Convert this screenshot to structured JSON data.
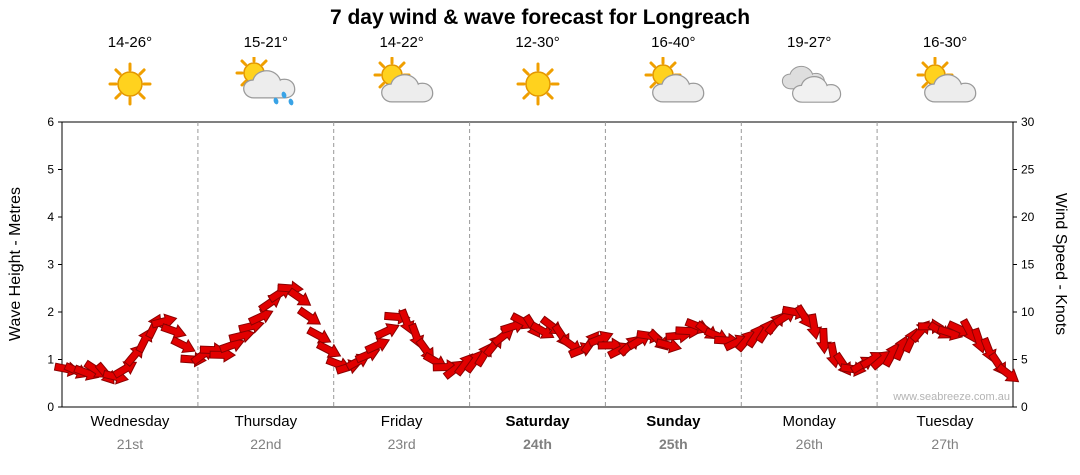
{
  "title": "7 day wind & wave forecast for Longreach",
  "watermark": "www.seabreeze.com.au",
  "axes": {
    "left_label": "Wave Height - Metres",
    "right_label": "Wind Speed - Knots",
    "left_ticks": [
      0,
      1,
      2,
      3,
      4,
      5,
      6
    ],
    "right_ticks": [
      0,
      5,
      10,
      15,
      20,
      25,
      30
    ]
  },
  "colors": {
    "arrow_fill": "#e10000",
    "arrow_stroke": "#8b0000",
    "grid": "#999999",
    "axis": "#000000",
    "date_text": "#808080",
    "watermark": "#b4b4b4"
  },
  "days": [
    {
      "name": "Wednesday",
      "date": "21st",
      "temp": "14-26°",
      "icon": "sunny",
      "weekend": false
    },
    {
      "name": "Thursday",
      "date": "22nd",
      "temp": "15-21°",
      "icon": "sun-showers",
      "weekend": false
    },
    {
      "name": "Friday",
      "date": "23rd",
      "temp": "14-22°",
      "icon": "partly-cloudy",
      "weekend": false
    },
    {
      "name": "Saturday",
      "date": "24th",
      "temp": "12-30°",
      "icon": "sunny",
      "weekend": true
    },
    {
      "name": "Sunday",
      "date": "25th",
      "temp": "16-40°",
      "icon": "partly-cloudy",
      "weekend": true
    },
    {
      "name": "Monday",
      "date": "26th",
      "temp": "19-27°",
      "icon": "cloudy",
      "weekend": false
    },
    {
      "name": "Tuesday",
      "date": "27th",
      "temp": "16-30°",
      "icon": "partly-cloudy",
      "weekend": false
    }
  ],
  "chart_data": {
    "type": "scatter",
    "marker": "wind-arrow",
    "title": "7 day wind & wave forecast for Longreach",
    "ylabel_left": "Wave Height - Metres",
    "ylabel_right": "Wind Speed - Knots",
    "ylim_left": [
      0,
      6
    ],
    "ylim_right": [
      0,
      30
    ],
    "grid": "vertical-dashed-day-separators",
    "x_categories": [
      "Wednesday 21st",
      "Thursday 22nd",
      "Friday 23rd",
      "Saturday 24th",
      "Sunday 25th",
      "Monday 26th",
      "Tuesday 27th"
    ],
    "samples_per_day": 14,
    "series": [
      {
        "name": "Wind Speed",
        "units": "knots",
        "values_by_day": {
          "Wednesday": [
            4.0,
            3.8,
            3.6,
            3.9,
            3.5,
            3.2,
            4.0,
            5.5,
            7.0,
            8.5,
            9.0,
            8.0,
            6.5,
            5.0
          ],
          "Thursday": [
            5.5,
            6.0,
            5.5,
            6.5,
            7.5,
            8.5,
            9.5,
            11.0,
            12.0,
            12.5,
            11.5,
            9.5,
            7.5,
            6.0
          ],
          "Friday": [
            4.5,
            4.2,
            4.8,
            5.5,
            6.5,
            8.0,
            9.5,
            9.0,
            7.5,
            6.0,
            4.8,
            4.2,
            4.0,
            4.5
          ],
          "Saturday": [
            4.8,
            5.5,
            6.5,
            7.5,
            8.5,
            9.0,
            8.5,
            8.0,
            8.5,
            7.5,
            6.5,
            6.0,
            6.8,
            7.2
          ],
          "Sunday": [
            6.5,
            6.0,
            6.5,
            7.0,
            7.5,
            7.0,
            6.5,
            7.5,
            8.0,
            8.5,
            8.0,
            7.5,
            7.0,
            6.8
          ],
          "Monday": [
            7.0,
            7.5,
            8.0,
            8.8,
            9.5,
            10.0,
            9.5,
            8.5,
            7.0,
            5.5,
            4.5,
            4.0,
            4.5,
            5.0
          ],
          "Tuesday": [
            5.0,
            5.5,
            6.2,
            7.0,
            8.0,
            8.5,
            8.0,
            7.8,
            8.2,
            8.0,
            7.0,
            6.0,
            4.5,
            3.5
          ]
        }
      }
    ]
  }
}
